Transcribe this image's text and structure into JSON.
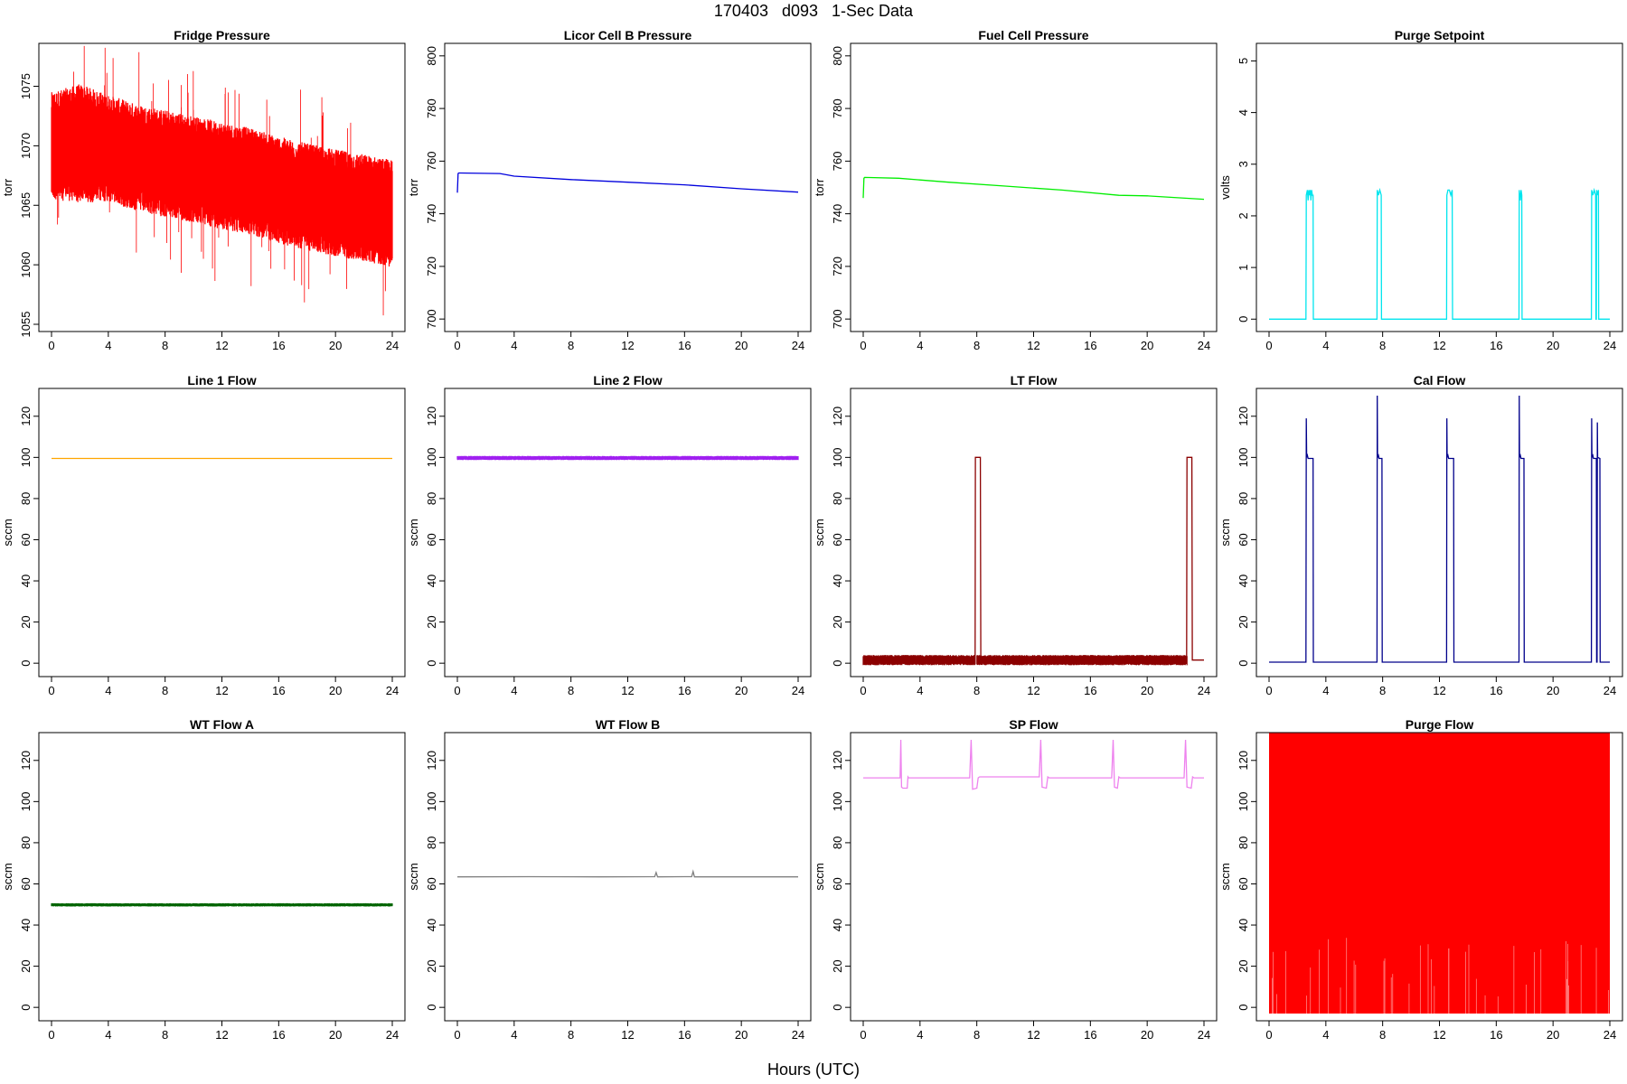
{
  "page": {
    "title": "170403   d093   1-Sec Data",
    "xlabel": "Hours (UTC)"
  },
  "chart_data": [
    {
      "type": "line",
      "title": "Fridge Pressure",
      "ylabel": "torr",
      "color": "#ff0000",
      "style": "noisy-band",
      "xlim": [
        0,
        24
      ],
      "ylim": [
        1055,
        1078
      ],
      "xticks": [
        0,
        4,
        8,
        12,
        16,
        20,
        24
      ],
      "yticks": [
        1055,
        1060,
        1065,
        1070,
        1075
      ],
      "series": [
        {
          "x": [
            0,
            2,
            4,
            6,
            8,
            10,
            12,
            14,
            16,
            18,
            20,
            22,
            24
          ],
          "y_center": [
            1070,
            1070.2,
            1069.8,
            1069,
            1068.5,
            1068,
            1067.5,
            1067,
            1066.3,
            1065.7,
            1065.2,
            1064.8,
            1064.3
          ],
          "y_spread": [
            4.5,
            5,
            4.5,
            4.5,
            4.5,
            4.5,
            4.5,
            4.5,
            4.5,
            4.5,
            4.5,
            4.5,
            4.5
          ]
        }
      ]
    },
    {
      "type": "line",
      "title": "Licor Cell B Pressure",
      "ylabel": "torr",
      "color": "#0000dd",
      "style": "line",
      "xlim": [
        0,
        24
      ],
      "ylim": [
        698,
        802
      ],
      "xticks": [
        0,
        4,
        8,
        12,
        16,
        20,
        24
      ],
      "yticks": [
        700,
        720,
        740,
        760,
        780,
        800
      ],
      "series": [
        {
          "x": [
            0,
            0.05,
            0.1,
            3,
            4,
            8,
            12,
            16,
            20,
            24
          ],
          "y": [
            748,
            755.3,
            755.5,
            755.3,
            754.3,
            753,
            752,
            751,
            749.5,
            748.2
          ]
        }
      ]
    },
    {
      "type": "line",
      "title": "Fuel Cell Pressure",
      "ylabel": "torr",
      "color": "#00ee00",
      "style": "line",
      "xlim": [
        0,
        24
      ],
      "ylim": [
        698,
        802
      ],
      "xticks": [
        0,
        4,
        8,
        12,
        16,
        20,
        24
      ],
      "yticks": [
        700,
        720,
        740,
        760,
        780,
        800
      ],
      "series": [
        {
          "x": [
            0,
            0.05,
            0.1,
            2.5,
            6,
            10,
            14,
            18,
            20,
            24
          ],
          "y": [
            746,
            753.5,
            753.8,
            753.5,
            752,
            750.5,
            749,
            747,
            746.8,
            745.5
          ]
        }
      ]
    },
    {
      "type": "line",
      "title": "Purge Setpoint",
      "ylabel": "volts",
      "color": "#00e5ee",
      "style": "line",
      "xlim": [
        0,
        24
      ],
      "ylim": [
        -0.1,
        5.2
      ],
      "xticks": [
        0,
        4,
        8,
        12,
        16,
        20,
        24
      ],
      "yticks": [
        0,
        1,
        2,
        3,
        4,
        5
      ],
      "series": [
        {
          "x": [
            0,
            2.6,
            2.62,
            2.7,
            2.75,
            2.8,
            2.85,
            2.9,
            2.95,
            3.0,
            3.05,
            3.1,
            3.12,
            7.6,
            7.62,
            7.7,
            7.8,
            7.9,
            7.92,
            12.5,
            12.52,
            12.6,
            12.7,
            12.8,
            12.9,
            12.92,
            17.6,
            17.62,
            17.7,
            17.75,
            17.8,
            17.82,
            22.7,
            22.72,
            22.8,
            22.9,
            23.0,
            23.02,
            23.05,
            23.07,
            23.1,
            23.2,
            23.22,
            24
          ],
          "y": [
            0,
            0,
            2.4,
            2.5,
            2.3,
            2.5,
            2.4,
            2.5,
            2.3,
            2.5,
            2.4,
            2.4,
            0,
            0,
            2.5,
            2.4,
            2.5,
            2.4,
            0,
            0,
            2.4,
            2.5,
            2.5,
            2.4,
            2.5,
            0,
            0,
            2.5,
            2.3,
            2.5,
            2.4,
            0,
            0,
            2.5,
            2.4,
            2.5,
            2.4,
            0,
            0,
            2.5,
            2.4,
            2.5,
            0,
            0
          ]
        }
      ]
    },
    {
      "type": "line",
      "title": "Line 1 Flow",
      "ylabel": "sccm",
      "color": "#ffa500",
      "style": "line",
      "xlim": [
        0,
        24
      ],
      "ylim": [
        -3,
        130
      ],
      "xticks": [
        0,
        4,
        8,
        12,
        16,
        20,
        24
      ],
      "yticks": [
        0,
        20,
        40,
        60,
        80,
        100,
        120
      ],
      "series": [
        {
          "x": [
            0,
            24
          ],
          "y": [
            99.5,
            99.5
          ]
        }
      ]
    },
    {
      "type": "line",
      "title": "Line 2 Flow",
      "ylabel": "sccm",
      "color": "#a020f0",
      "style": "noisy-band",
      "xlim": [
        0,
        24
      ],
      "ylim": [
        -3,
        130
      ],
      "xticks": [
        0,
        4,
        8,
        12,
        16,
        20,
        24
      ],
      "yticks": [
        0,
        20,
        40,
        60,
        80,
        100,
        120
      ],
      "series": [
        {
          "x": [
            0,
            24
          ],
          "y_center": [
            99.7,
            99.7
          ],
          "y_spread": [
            1,
            1
          ]
        }
      ]
    },
    {
      "type": "line",
      "title": "LT Flow",
      "ylabel": "sccm",
      "color": "#8b0000",
      "style": "line",
      "xlim": [
        0,
        24
      ],
      "ylim": [
        -3,
        130
      ],
      "xticks": [
        0,
        4,
        8,
        12,
        16,
        20,
        24
      ],
      "yticks": [
        0,
        20,
        40,
        60,
        80,
        100,
        120
      ],
      "series": [
        {
          "name": "baseline",
          "x": [
            0,
            7.9,
            7.9,
            8.0,
            8.0,
            22.8,
            22.8,
            24
          ],
          "y_center": [
            1.5,
            1.5,
            null,
            null,
            1.5,
            1.5,
            null,
            1.5
          ],
          "y_spread": [
            2.5,
            2.5,
            0,
            0,
            2.5,
            2.5,
            0,
            2.5
          ]
        },
        {
          "name": "pulse",
          "x": [
            0,
            7.88,
            7.9,
            8.25,
            8.28,
            22.78,
            22.8,
            23.15,
            23.18,
            24
          ],
          "y": [
            1.5,
            1.5,
            100,
            100,
            1.5,
            1.5,
            100,
            100,
            1.5,
            1.5
          ]
        }
      ]
    },
    {
      "type": "line",
      "title": "Cal Flow",
      "ylabel": "sccm",
      "color": "#00008b",
      "style": "line",
      "xlim": [
        0,
        24
      ],
      "ylim": [
        -3,
        130
      ],
      "xticks": [
        0,
        4,
        8,
        12,
        16,
        20,
        24
      ],
      "yticks": [
        0,
        20,
        40,
        60,
        80,
        100,
        120
      ],
      "series": [
        {
          "x": [
            0,
            2.6,
            2.62,
            2.65,
            2.7,
            2.75,
            3.1,
            3.12,
            7.6,
            7.62,
            7.64,
            7.7,
            7.75,
            7.95,
            7.97,
            12.5,
            12.52,
            12.54,
            12.6,
            12.65,
            13.0,
            13.02,
            17.6,
            17.62,
            17.64,
            17.7,
            17.75,
            17.95,
            17.97,
            22.7,
            22.72,
            22.74,
            22.8,
            22.85,
            23.05,
            23.07,
            23.1,
            23.12,
            23.14,
            23.3,
            23.32,
            24
          ],
          "y": [
            0.5,
            0.5,
            119,
            100,
            101,
            99.5,
            99.5,
            0.5,
            0.5,
            130,
            100,
            101,
            99.5,
            99.5,
            0.5,
            0.5,
            119,
            100,
            101,
            99.5,
            99.5,
            0.5,
            0.5,
            130,
            100,
            101,
            99.5,
            99.5,
            0.5,
            0.5,
            119,
            100,
            101,
            99.5,
            99.5,
            0.5,
            0.5,
            117,
            100,
            99.5,
            0.5,
            0.5
          ]
        }
      ]
    },
    {
      "type": "line",
      "title": "WT Flow A",
      "ylabel": "sccm",
      "color": "#006400",
      "style": "noisy-band",
      "xlim": [
        0,
        24
      ],
      "ylim": [
        -3,
        130
      ],
      "xticks": [
        0,
        4,
        8,
        12,
        16,
        20,
        24
      ],
      "yticks": [
        0,
        20,
        40,
        60,
        80,
        100,
        120
      ],
      "series": [
        {
          "x": [
            0,
            24
          ],
          "y_center": [
            49.8,
            49.8
          ],
          "y_spread": [
            0.8,
            0.8
          ]
        }
      ]
    },
    {
      "type": "line",
      "title": "WT Flow B",
      "ylabel": "sccm",
      "color": "#808080",
      "style": "line",
      "xlim": [
        0,
        24
      ],
      "ylim": [
        -3,
        130
      ],
      "xticks": [
        0,
        4,
        8,
        12,
        16,
        20,
        24
      ],
      "yticks": [
        0,
        20,
        40,
        60,
        80,
        100,
        120
      ],
      "series": [
        {
          "x": [
            0,
            5,
            10,
            13.9,
            14,
            14.1,
            16,
            16.5,
            16.6,
            16.7,
            24
          ],
          "y": [
            63.4,
            63.5,
            63.4,
            63.5,
            65.5,
            63.4,
            63.5,
            63.5,
            66,
            63.4,
            63.4
          ]
        }
      ]
    },
    {
      "type": "line",
      "title": "SP Flow",
      "ylabel": "sccm",
      "color": "#ee82ee",
      "style": "line",
      "xlim": [
        0,
        24
      ],
      "ylim": [
        -3,
        130
      ],
      "xticks": [
        0,
        4,
        8,
        12,
        16,
        20,
        24
      ],
      "yticks": [
        0,
        20,
        40,
        60,
        80,
        100,
        120
      ],
      "series": [
        {
          "x": [
            0,
            2.6,
            2.65,
            2.7,
            2.8,
            3.1,
            3.15,
            3.2,
            7.5,
            7.6,
            7.7,
            8.0,
            8.1,
            8.2,
            12.4,
            12.5,
            12.6,
            12.9,
            13.0,
            13.1,
            17.5,
            17.6,
            17.7,
            17.9,
            18.0,
            18.1,
            22.6,
            22.7,
            22.8,
            23.1,
            23.2,
            23.3,
            24
          ],
          "y": [
            111.5,
            111.5,
            130,
            107,
            106.5,
            106.5,
            112,
            111.5,
            111.5,
            130,
            106,
            106.5,
            111.5,
            112,
            112,
            130,
            107,
            106.5,
            112,
            111.5,
            111.5,
            130,
            107,
            106.5,
            112,
            111.5,
            111.5,
            130,
            107,
            106.5,
            112,
            111.5,
            111.5
          ]
        }
      ]
    },
    {
      "type": "line",
      "title": "Purge Flow",
      "ylabel": "sccm",
      "color": "#ff0000",
      "style": "filled-noise",
      "xlim": [
        0,
        24
      ],
      "ylim": [
        -3,
        130
      ],
      "xticks": [
        0,
        4,
        8,
        12,
        16,
        20,
        24
      ],
      "yticks": [
        0,
        20,
        40,
        60,
        80,
        100,
        120
      ],
      "series": [
        {
          "x": [
            0,
            24
          ],
          "y_min": [
            -3,
            -3
          ],
          "y_max": [
            130,
            130
          ]
        }
      ]
    }
  ]
}
